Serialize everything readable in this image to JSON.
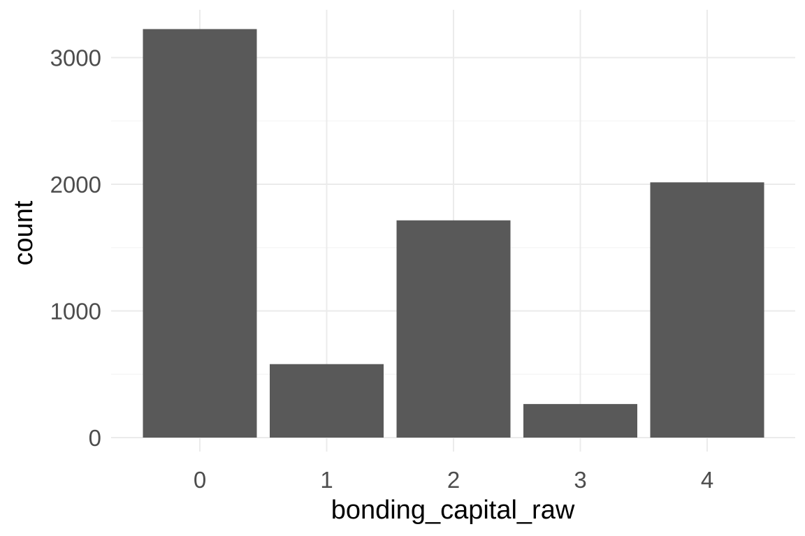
{
  "chart_data": {
    "type": "bar",
    "categories": [
      "0",
      "1",
      "2",
      "3",
      "4"
    ],
    "values": [
      3225,
      580,
      1715,
      265,
      2015
    ],
    "title": "",
    "xlabel": "bonding_capital_raw",
    "ylabel": "count",
    "ylim": [
      0,
      3300
    ],
    "yticks": [
      0,
      1000,
      2000,
      3000
    ],
    "ytick_labels": [
      "0",
      "1000",
      "2000",
      "3000"
    ],
    "grid": true,
    "legend": "none",
    "colors": {
      "bar": "#595959",
      "grid_major": "#ebebeb",
      "grid_minor": "#f5f5f5",
      "background": "#ffffff"
    }
  }
}
